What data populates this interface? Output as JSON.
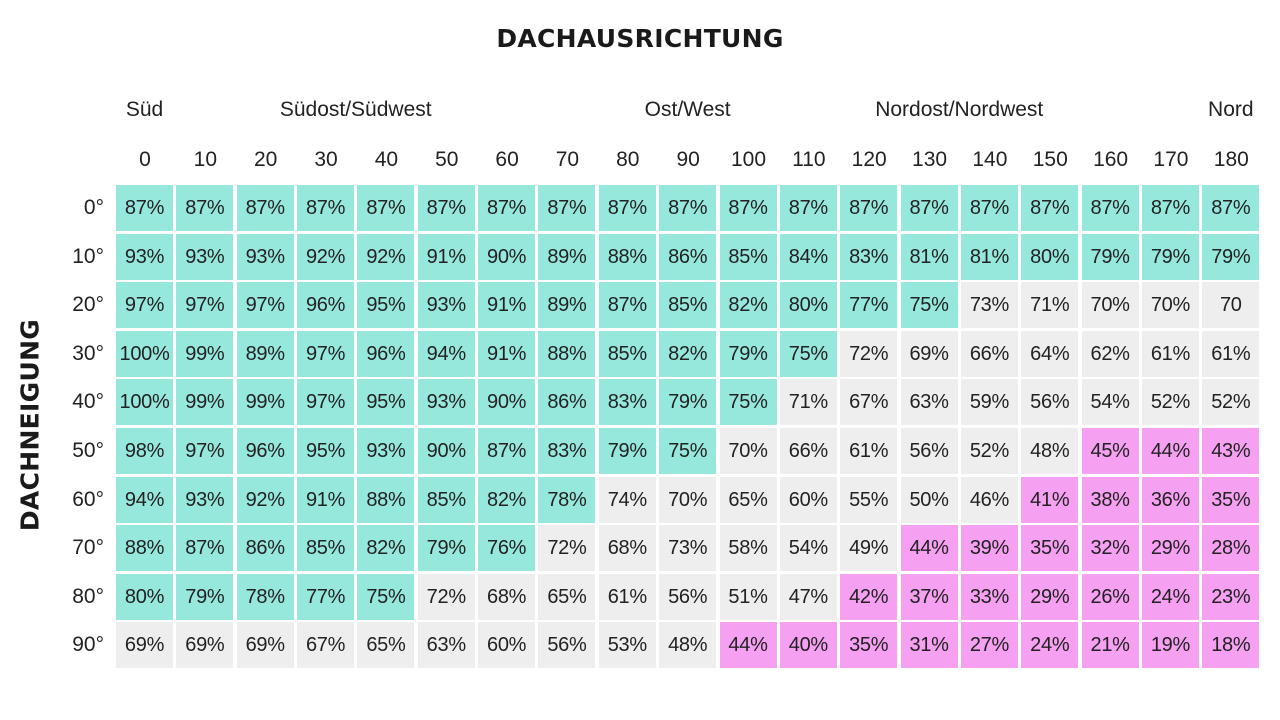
{
  "chart_data": {
    "type": "heatmap",
    "title": "DACHAUSRICHTUNG",
    "ylabel": "DACHNEIGUNG",
    "x_groups": [
      "Süd",
      "Südost/Südwest",
      "Ost/West",
      "Nordost/Nordwest",
      "Nord"
    ],
    "x_tick_labels": [
      "0",
      "10",
      "20",
      "30",
      "40",
      "50",
      "60",
      "70",
      "80",
      "90",
      "100",
      "110",
      "120",
      "130",
      "140",
      "150",
      "160",
      "170",
      "180"
    ],
    "y_tick_labels": [
      "0°",
      "10°",
      "20°",
      "30°",
      "40°",
      "50°",
      "60°",
      "70°",
      "80°",
      "90°"
    ],
    "cells": [
      [
        "87%",
        "87%",
        "87%",
        "87%",
        "87%",
        "87%",
        "87%",
        "87%",
        "87%",
        "87%",
        "87%",
        "87%",
        "87%",
        "87%",
        "87%",
        "87%",
        "87%",
        "87%",
        "87%"
      ],
      [
        "93%",
        "93%",
        "93%",
        "92%",
        "92%",
        "91%",
        "90%",
        "89%",
        "88%",
        "86%",
        "85%",
        "84%",
        "83%",
        "81%",
        "81%",
        "80%",
        "79%",
        "79%",
        "79%"
      ],
      [
        "97%",
        "97%",
        "97%",
        "96%",
        "95%",
        "93%",
        "91%",
        "89%",
        "87%",
        "85%",
        "82%",
        "80%",
        "77%",
        "75%",
        "73%",
        "71%",
        "70%",
        "70%",
        "70"
      ],
      [
        "100%",
        "99%",
        "89%",
        "97%",
        "96%",
        "94%",
        "91%",
        "88%",
        "85%",
        "82%",
        "79%",
        "75%",
        "72%",
        "69%",
        "66%",
        "64%",
        "62%",
        "61%",
        "61%"
      ],
      [
        "100%",
        "99%",
        "99%",
        "97%",
        "95%",
        "93%",
        "90%",
        "86%",
        "83%",
        "79%",
        "75%",
        "71%",
        "67%",
        "63%",
        "59%",
        "56%",
        "54%",
        "52%",
        "52%"
      ],
      [
        "98%",
        "97%",
        "96%",
        "95%",
        "93%",
        "90%",
        "87%",
        "83%",
        "79%",
        "75%",
        "70%",
        "66%",
        "61%",
        "56%",
        "52%",
        "48%",
        "45%",
        "44%",
        "43%"
      ],
      [
        "94%",
        "93%",
        "92%",
        "91%",
        "88%",
        "85%",
        "82%",
        "78%",
        "74%",
        "70%",
        "65%",
        "60%",
        "55%",
        "50%",
        "46%",
        "41%",
        "38%",
        "36%",
        "35%"
      ],
      [
        "88%",
        "87%",
        "86%",
        "85%",
        "82%",
        "79%",
        "76%",
        "72%",
        "68%",
        "73%",
        "58%",
        "54%",
        "49%",
        "44%",
        "39%",
        "35%",
        "32%",
        "29%",
        "28%"
      ],
      [
        "80%",
        "79%",
        "78%",
        "77%",
        "75%",
        "72%",
        "68%",
        "65%",
        "61%",
        "56%",
        "51%",
        "47%",
        "42%",
        "37%",
        "33%",
        "29%",
        "26%",
        "24%",
        "23%"
      ],
      [
        "69%",
        "69%",
        "69%",
        "67%",
        "65%",
        "63%",
        "60%",
        "56%",
        "53%",
        "48%",
        "44%",
        "40%",
        "35%",
        "31%",
        "27%",
        "24%",
        "21%",
        "19%",
        "18%"
      ]
    ],
    "categories": [
      [
        "g",
        "g",
        "g",
        "g",
        "g",
        "g",
        "g",
        "g",
        "g",
        "g",
        "g",
        "g",
        "g",
        "g",
        "g",
        "g",
        "g",
        "g",
        "g"
      ],
      [
        "g",
        "g",
        "g",
        "g",
        "g",
        "g",
        "g",
        "g",
        "g",
        "g",
        "g",
        "g",
        "g",
        "g",
        "g",
        "g",
        "g",
        "g",
        "g"
      ],
      [
        "g",
        "g",
        "g",
        "g",
        "g",
        "g",
        "g",
        "g",
        "g",
        "g",
        "g",
        "g",
        "g",
        "g",
        "n",
        "n",
        "n",
        "n",
        "n"
      ],
      [
        "g",
        "g",
        "g",
        "g",
        "g",
        "g",
        "g",
        "g",
        "g",
        "g",
        "g",
        "g",
        "n",
        "n",
        "n",
        "n",
        "n",
        "n",
        "n"
      ],
      [
        "g",
        "g",
        "g",
        "g",
        "g",
        "g",
        "g",
        "g",
        "g",
        "g",
        "g",
        "n",
        "n",
        "n",
        "n",
        "n",
        "n",
        "n",
        "n"
      ],
      [
        "g",
        "g",
        "g",
        "g",
        "g",
        "g",
        "g",
        "g",
        "g",
        "g",
        "n",
        "n",
        "n",
        "n",
        "n",
        "n",
        "p",
        "p",
        "p"
      ],
      [
        "g",
        "g",
        "g",
        "g",
        "g",
        "g",
        "g",
        "g",
        "n",
        "n",
        "n",
        "n",
        "n",
        "n",
        "n",
        "p",
        "p",
        "p",
        "p"
      ],
      [
        "g",
        "g",
        "g",
        "g",
        "g",
        "g",
        "g",
        "n",
        "n",
        "n",
        "n",
        "n",
        "n",
        "p",
        "p",
        "p",
        "p",
        "p",
        "p"
      ],
      [
        "g",
        "g",
        "g",
        "g",
        "g",
        "n",
        "n",
        "n",
        "n",
        "n",
        "n",
        "n",
        "p",
        "p",
        "p",
        "p",
        "p",
        "p",
        "p"
      ],
      [
        "n",
        "n",
        "n",
        "n",
        "n",
        "n",
        "n",
        "n",
        "n",
        "n",
        "p",
        "p",
        "p",
        "p",
        "p",
        "p",
        "p",
        "p",
        "p"
      ]
    ],
    "colors": {
      "g": "#97e8dc",
      "n": "#eeeeee",
      "p": "#f6a0f2"
    }
  }
}
